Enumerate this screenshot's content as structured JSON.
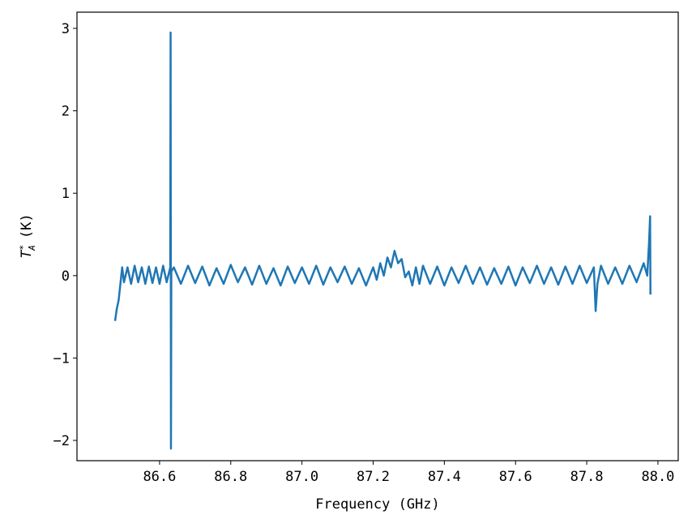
{
  "chart_data": {
    "type": "line",
    "x_label": "Frequency (GHz)",
    "y_label": {
      "symbol": "T",
      "superscript": "*",
      "subscript": "A",
      "unit": "(K)"
    },
    "color": "#1f77b4",
    "x": [
      86.475,
      86.48,
      86.485,
      86.49,
      86.495,
      86.5,
      86.51,
      86.52,
      86.53,
      86.54,
      86.55,
      86.56,
      86.57,
      86.58,
      86.59,
      86.6,
      86.61,
      86.62,
      86.63,
      86.631,
      86.632,
      86.633,
      86.64,
      86.66,
      86.68,
      86.7,
      86.72,
      86.74,
      86.76,
      86.78,
      86.8,
      86.82,
      86.84,
      86.86,
      86.88,
      86.9,
      86.92,
      86.94,
      86.96,
      86.98,
      87.0,
      87.02,
      87.04,
      87.06,
      87.08,
      87.1,
      87.12,
      87.14,
      87.16,
      87.18,
      87.2,
      87.21,
      87.22,
      87.23,
      87.24,
      87.25,
      87.26,
      87.27,
      87.28,
      87.29,
      87.3,
      87.31,
      87.32,
      87.33,
      87.34,
      87.36,
      87.38,
      87.4,
      87.42,
      87.44,
      87.46,
      87.48,
      87.5,
      87.52,
      87.54,
      87.56,
      87.58,
      87.6,
      87.62,
      87.64,
      87.66,
      87.68,
      87.7,
      87.72,
      87.74,
      87.76,
      87.78,
      87.8,
      87.82,
      87.825,
      87.83,
      87.84,
      87.86,
      87.88,
      87.9,
      87.92,
      87.94,
      87.96,
      87.97,
      87.975,
      87.978,
      87.979
    ],
    "values": [
      -0.55,
      -0.4,
      -0.3,
      -0.1,
      0.1,
      -0.08,
      0.1,
      -0.1,
      0.12,
      -0.08,
      0.1,
      -0.1,
      0.11,
      -0.09,
      0.1,
      -0.1,
      0.12,
      -0.08,
      0.1,
      2.95,
      -2.1,
      0.05,
      0.1,
      -0.1,
      0.12,
      -0.09,
      0.11,
      -0.12,
      0.09,
      -0.1,
      0.13,
      -0.08,
      0.1,
      -0.11,
      0.12,
      -0.1,
      0.09,
      -0.12,
      0.11,
      -0.09,
      0.1,
      -0.1,
      0.12,
      -0.11,
      0.1,
      -0.08,
      0.11,
      -0.1,
      0.09,
      -0.12,
      0.1,
      -0.05,
      0.15,
      0.0,
      0.22,
      0.1,
      0.3,
      0.15,
      0.2,
      -0.02,
      0.05,
      -0.12,
      0.1,
      -0.1,
      0.12,
      -0.1,
      0.11,
      -0.12,
      0.1,
      -0.09,
      0.12,
      -0.1,
      0.1,
      -0.11,
      0.09,
      -0.1,
      0.11,
      -0.12,
      0.1,
      -0.09,
      0.12,
      -0.1,
      0.1,
      -0.11,
      0.11,
      -0.1,
      0.12,
      -0.09,
      0.1,
      -0.43,
      -0.1,
      0.12,
      -0.1,
      0.1,
      -0.1,
      0.12,
      -0.08,
      0.15,
      0.0,
      0.4,
      0.72,
      -0.23
    ],
    "xlim": [
      86.368,
      88.057
    ],
    "ylim": [
      -2.246,
      3.197
    ],
    "xticks": [
      86.6,
      86.8,
      {
        "value": 87,
        "label": "87.0"
      },
      87.2,
      87.4,
      87.6,
      87.8,
      {
        "value": 88,
        "label": "88.0"
      }
    ],
    "yticks": [
      {
        "value": -2,
        "label": "−2"
      },
      {
        "value": -1,
        "label": "−1"
      },
      0,
      1,
      2,
      3
    ]
  }
}
